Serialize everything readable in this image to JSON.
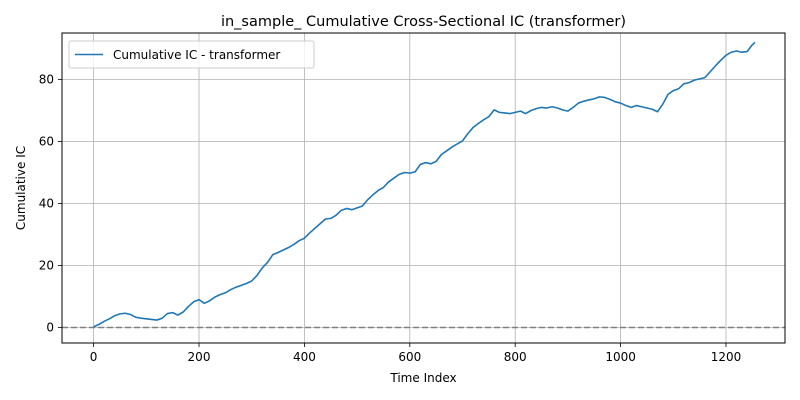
{
  "chart_data": {
    "type": "line",
    "title": "in_sample_ Cumulative Cross-Sectional IC (transformer)",
    "xlabel": "Time Index",
    "ylabel": "Cumulative IC",
    "xlim": [
      -60,
      1312
    ],
    "ylim": [
      -5,
      95
    ],
    "xticks": [
      0,
      200,
      400,
      600,
      800,
      1000,
      1200
    ],
    "yticks": [
      0,
      20,
      40,
      60,
      80
    ],
    "grid": true,
    "legend": "upper-left",
    "reference_line": {
      "y": 0,
      "style": "dashed",
      "color": "#808080"
    },
    "series": [
      {
        "name": "Cumulative IC - transformer",
        "color": "#1f77b4",
        "x": [
          0,
          10,
          20,
          30,
          40,
          50,
          60,
          70,
          80,
          90,
          100,
          110,
          120,
          130,
          140,
          150,
          160,
          170,
          180,
          190,
          200,
          210,
          220,
          230,
          240,
          250,
          260,
          270,
          280,
          290,
          300,
          310,
          320,
          330,
          340,
          350,
          360,
          370,
          380,
          390,
          400,
          410,
          420,
          430,
          440,
          450,
          460,
          470,
          480,
          490,
          500,
          510,
          520,
          530,
          540,
          550,
          560,
          570,
          580,
          590,
          600,
          610,
          620,
          630,
          640,
          650,
          660,
          670,
          680,
          690,
          700,
          710,
          720,
          730,
          740,
          750,
          760,
          770,
          780,
          790,
          800,
          810,
          820,
          830,
          840,
          850,
          860,
          870,
          880,
          890,
          900,
          910,
          920,
          930,
          940,
          950,
          960,
          970,
          980,
          990,
          1000,
          1010,
          1020,
          1030,
          1040,
          1050,
          1060,
          1070,
          1080,
          1090,
          1100,
          1110,
          1120,
          1130,
          1140,
          1150,
          1160,
          1170,
          1180,
          1190,
          1200,
          1210,
          1220,
          1230,
          1240,
          1250,
          1255
        ],
        "values": [
          0.2,
          1.0,
          2.0,
          2.8,
          3.8,
          4.4,
          4.6,
          4.2,
          3.3,
          3.0,
          2.8,
          2.6,
          2.4,
          3.0,
          4.5,
          4.8,
          4.0,
          5.0,
          6.8,
          8.3,
          9.0,
          7.8,
          8.6,
          9.8,
          10.6,
          11.2,
          12.2,
          13.0,
          13.6,
          14.2,
          15.0,
          16.8,
          19.2,
          21.0,
          23.5,
          24.2,
          25.0,
          25.8,
          26.8,
          28.0,
          28.8,
          30.5,
          32.0,
          33.5,
          35.0,
          35.2,
          36.2,
          37.8,
          38.4,
          38.0,
          38.6,
          39.2,
          41.2,
          42.8,
          44.2,
          45.2,
          47.0,
          48.2,
          49.4,
          50.0,
          49.8,
          50.2,
          52.6,
          53.2,
          52.8,
          53.6,
          55.8,
          57.0,
          58.2,
          59.2,
          60.2,
          62.5,
          64.5,
          65.8,
          67.0,
          68.0,
          70.2,
          69.4,
          69.2,
          69.0,
          69.4,
          69.8,
          69.0,
          70.0,
          70.6,
          71.0,
          70.8,
          71.2,
          70.8,
          70.2,
          69.8,
          71.0,
          72.4,
          73.0,
          73.4,
          73.8,
          74.4,
          74.2,
          73.6,
          72.8,
          72.4,
          71.6,
          71.0,
          71.6,
          71.2,
          70.8,
          70.4,
          69.6,
          72.0,
          75.2,
          76.4,
          77.0,
          78.6,
          79.0,
          79.8,
          80.2,
          80.6,
          82.5,
          84.4,
          86.2,
          87.8,
          88.8,
          89.2,
          88.8,
          89.0,
          91.2,
          92.0
        ]
      }
    ]
  }
}
